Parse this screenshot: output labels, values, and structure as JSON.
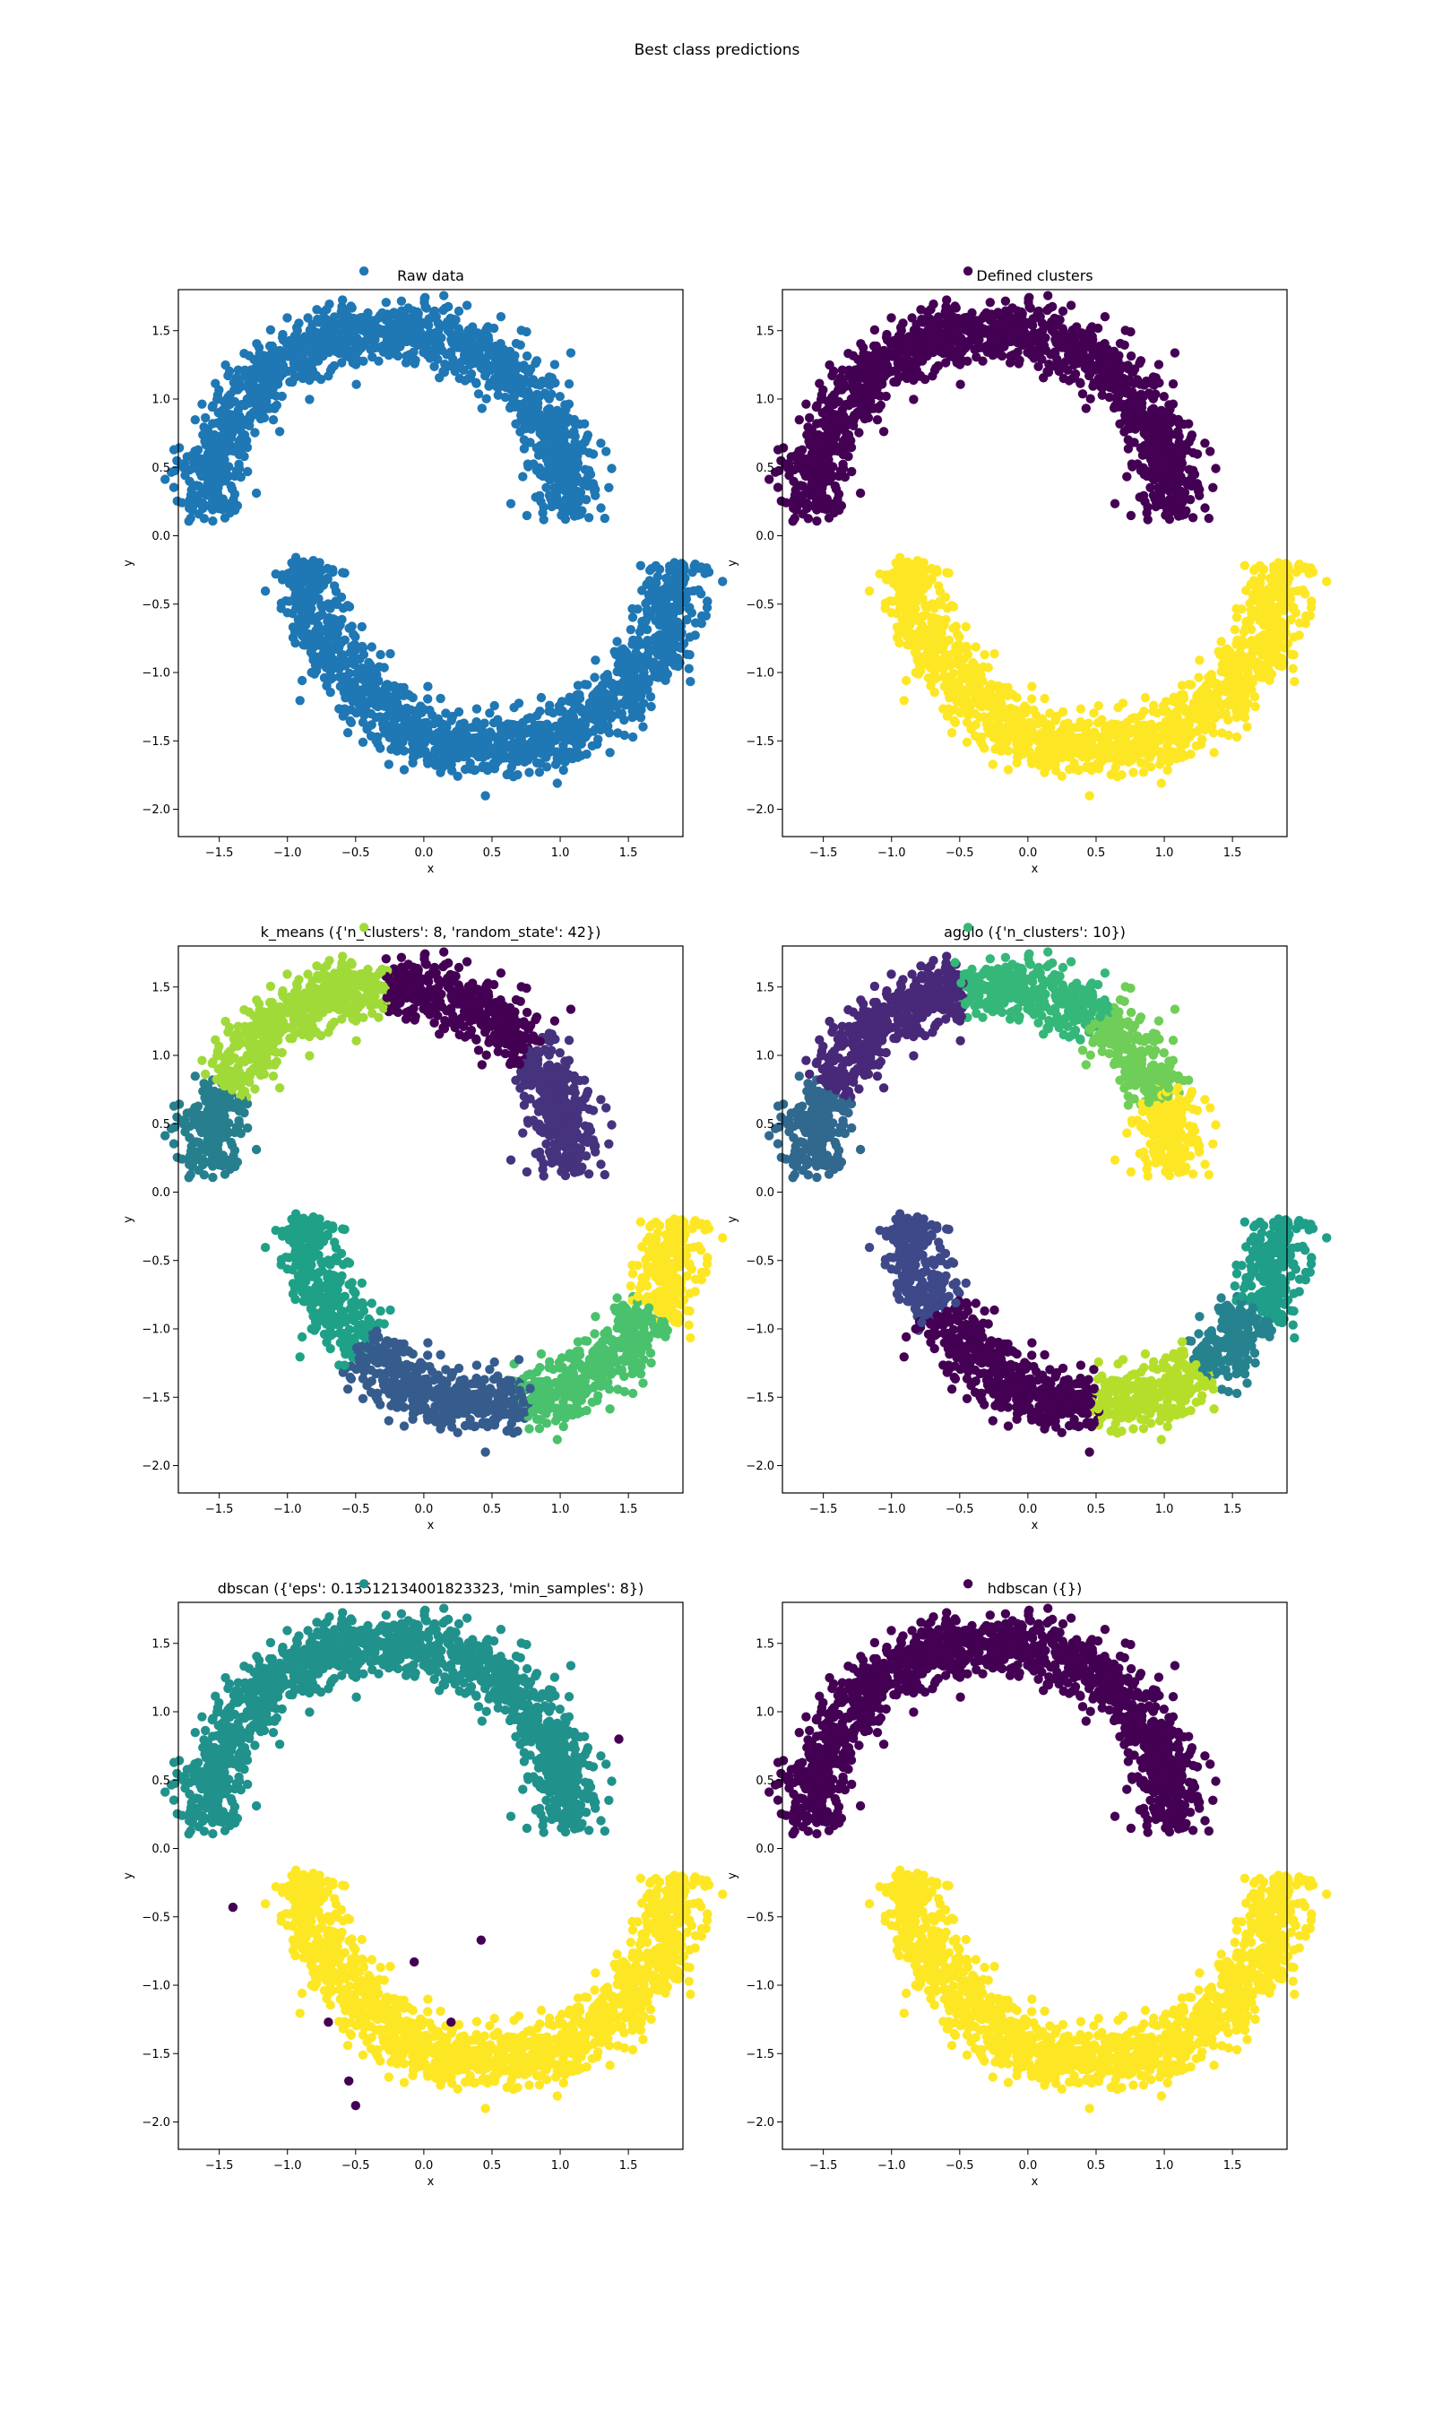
{
  "figure": {
    "title": "Best class predictions"
  },
  "palette": {
    "tab_blue": "#1f77b4",
    "viridis": [
      "#440154",
      "#482878",
      "#3e4989",
      "#31688e",
      "#26828e",
      "#1f9e89",
      "#35b779",
      "#6ece58",
      "#b5de2b",
      "#fde725"
    ]
  },
  "chart_data": [
    {
      "type": "scatter",
      "title": "Raw data",
      "xlabel": "x",
      "ylabel": "y",
      "xlim": [
        -1.8,
        1.9
      ],
      "ylim": [
        -2.2,
        1.8
      ],
      "xticks": [
        -1.5,
        -1.0,
        -0.5,
        0.0,
        0.5,
        1.0,
        1.5
      ],
      "yticks": [
        -2.0,
        -1.5,
        -1.0,
        -0.5,
        0.0,
        0.5,
        1.0,
        1.5
      ],
      "grid": false,
      "dataset": "two noisy interleaved half-moons, ~4000 points (top arc centre (-0.25, 0.15), bottom arc centre (0.5, -0.2), radius ~1.35)",
      "coloring": "single",
      "series": [
        {
          "color": "#1f77b4",
          "regions": [
            {
              "arc": "top",
              "from_deg": 0,
              "to_deg": 180
            },
            {
              "arc": "bottom",
              "from_deg": 0,
              "to_deg": 180
            }
          ]
        }
      ]
    },
    {
      "type": "scatter",
      "title": "Defined clusters",
      "xlabel": "x",
      "ylabel": "y",
      "xlim": [
        -1.8,
        1.9
      ],
      "ylim": [
        -2.2,
        1.8
      ],
      "xticks": [
        -1.5,
        -1.0,
        -0.5,
        0.0,
        0.5,
        1.0,
        1.5
      ],
      "yticks": [
        -2.0,
        -1.5,
        -1.0,
        -0.5,
        0.0,
        0.5,
        1.0,
        1.5
      ],
      "grid": false,
      "series": [
        {
          "color": "#440154",
          "regions": [
            {
              "arc": "top",
              "from_deg": 0,
              "to_deg": 180
            }
          ]
        },
        {
          "color": "#fde725",
          "regions": [
            {
              "arc": "bottom",
              "from_deg": 0,
              "to_deg": 180
            }
          ]
        }
      ]
    },
    {
      "type": "scatter",
      "title": "k_means ({'n_clusters': 8, 'random_state': 42})",
      "xlabel": "x",
      "ylabel": "y",
      "xlim": [
        -1.8,
        1.9
      ],
      "ylim": [
        -2.2,
        1.8
      ],
      "xticks": [
        -1.5,
        -1.0,
        -0.5,
        0.0,
        0.5,
        1.0,
        1.5
      ],
      "yticks": [
        -2.0,
        -1.5,
        -1.0,
        -0.5,
        0.0,
        0.5,
        1.0,
        1.5
      ],
      "grid": false,
      "series": [
        {
          "color": "#440154",
          "regions": [
            {
              "arc": "top",
              "from_deg": 40,
              "to_deg": 91
            }
          ]
        },
        {
          "color": "#46337e",
          "regions": [
            {
              "arc": "top",
              "from_deg": 0,
              "to_deg": 40
            }
          ]
        },
        {
          "color": "#365c8d",
          "regions": [
            {
              "arc": "bottom",
              "from_deg": 80,
              "to_deg": 136
            }
          ]
        },
        {
          "color": "#277f8e",
          "regions": [
            {
              "arc": "top",
              "from_deg": 152,
              "to_deg": 180
            }
          ]
        },
        {
          "color": "#1fa187",
          "regions": [
            {
              "arc": "bottom",
              "from_deg": 136,
              "to_deg": 180
            }
          ]
        },
        {
          "color": "#4ac16d",
          "regions": [
            {
              "arc": "bottom",
              "from_deg": 30,
              "to_deg": 80
            }
          ]
        },
        {
          "color": "#a0da39",
          "regions": [
            {
              "arc": "top",
              "from_deg": 91,
              "to_deg": 152
            }
          ]
        },
        {
          "color": "#fde725",
          "regions": [
            {
              "arc": "bottom",
              "from_deg": 0,
              "to_deg": 30
            }
          ]
        }
      ]
    },
    {
      "type": "scatter",
      "title": "agglo ({'n_clusters': 10})",
      "xlabel": "x",
      "ylabel": "y",
      "xlim": [
        -1.8,
        1.9
      ],
      "ylim": [
        -2.2,
        1.8
      ],
      "xticks": [
        -1.5,
        -1.0,
        -0.5,
        0.0,
        0.5,
        1.0,
        1.5
      ],
      "yticks": [
        -2.0,
        -1.5,
        -1.0,
        -0.5,
        0.0,
        0.5,
        1.0,
        1.5
      ],
      "grid": false,
      "series": [
        {
          "color": "#440154",
          "regions": [
            {
              "arc": "bottom",
              "from_deg": 112,
              "to_deg": 150
            },
            {
              "arc": "bottom",
              "from_deg": 90,
              "to_deg": 112
            }
          ]
        },
        {
          "color": "#482878",
          "regions": [
            {
              "arc": "top",
              "from_deg": 100,
              "to_deg": 152
            }
          ]
        },
        {
          "color": "#3e4989",
          "regions": [
            {
              "arc": "bottom",
              "from_deg": 150,
              "to_deg": 180
            }
          ]
        },
        {
          "color": "#31688e",
          "regions": [
            {
              "arc": "top",
              "from_deg": 152,
              "to_deg": 180
            }
          ]
        },
        {
          "color": "#26828e",
          "regions": [
            {
              "arc": "bottom",
              "from_deg": 30,
              "to_deg": 55
            }
          ]
        },
        {
          "color": "#1f9e89",
          "regions": [
            {
              "arc": "bottom",
              "from_deg": 0,
              "to_deg": 30
            }
          ]
        },
        {
          "color": "#35b779",
          "regions": [
            {
              "arc": "top",
              "from_deg": 55,
              "to_deg": 100
            }
          ]
        },
        {
          "color": "#6ece58",
          "regions": [
            {
              "arc": "top",
              "from_deg": 24,
              "to_deg": 55
            }
          ]
        },
        {
          "color": "#b5de2b",
          "regions": [
            {
              "arc": "bottom",
              "from_deg": 55,
              "to_deg": 90
            }
          ]
        },
        {
          "color": "#fde725",
          "regions": [
            {
              "arc": "top",
              "from_deg": 0,
              "to_deg": 24
            }
          ]
        }
      ]
    },
    {
      "type": "scatter",
      "title": "dbscan ({'eps': 0.13512134001823323, 'min_samples': 8})",
      "xlabel": "x",
      "ylabel": "y",
      "xlim": [
        -1.8,
        1.9
      ],
      "ylim": [
        -2.2,
        1.8
      ],
      "xticks": [
        -1.5,
        -1.0,
        -0.5,
        0.0,
        0.5,
        1.0,
        1.5
      ],
      "yticks": [
        -2.0,
        -1.5,
        -1.0,
        -0.5,
        0.0,
        0.5,
        1.0,
        1.5
      ],
      "grid": false,
      "series": [
        {
          "color": "#21918c",
          "regions": [
            {
              "arc": "top",
              "from_deg": 0,
              "to_deg": 180
            }
          ]
        },
        {
          "color": "#fde725",
          "regions": [
            {
              "arc": "bottom",
              "from_deg": 0,
              "to_deg": 180
            }
          ]
        },
        {
          "color": "#440154",
          "name_hint": "noise",
          "points": [
            [
              -1.4,
              -0.43
            ],
            [
              1.43,
              0.8
            ],
            [
              -0.07,
              -0.83
            ],
            [
              -0.7,
              -1.27
            ],
            [
              0.2,
              -1.27
            ],
            [
              -0.55,
              -1.7
            ],
            [
              -0.5,
              -1.88
            ],
            [
              0.42,
              -0.67
            ]
          ]
        }
      ]
    },
    {
      "type": "scatter",
      "title": "hdbscan ({})",
      "xlabel": "x",
      "ylabel": "y",
      "xlim": [
        -1.8,
        1.9
      ],
      "ylim": [
        -2.2,
        1.8
      ],
      "xticks": [
        -1.5,
        -1.0,
        -0.5,
        0.0,
        0.5,
        1.0,
        1.5
      ],
      "yticks": [
        -2.0,
        -1.5,
        -1.0,
        -0.5,
        0.0,
        0.5,
        1.0,
        1.5
      ],
      "grid": false,
      "series": [
        {
          "color": "#440154",
          "regions": [
            {
              "arc": "top",
              "from_deg": 0,
              "to_deg": 180
            }
          ]
        },
        {
          "color": "#fde725",
          "regions": [
            {
              "arc": "bottom",
              "from_deg": 0,
              "to_deg": 180
            }
          ]
        }
      ]
    }
  ]
}
